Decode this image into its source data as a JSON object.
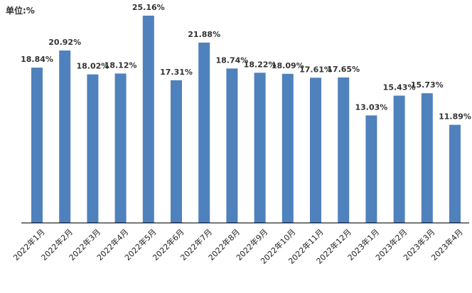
{
  "chart_data": {
    "type": "bar",
    "unit_label": "单位:%",
    "categories": [
      "2022年1月",
      "2022年2月",
      "2022年3月",
      "2022年4月",
      "2022年5月",
      "2022年6月",
      "2022年7月",
      "2022年8月",
      "2022年9月",
      "2022年10月",
      "2022年11月",
      "2022年12月",
      "2023年1月",
      "2023年2月",
      "2023年3月",
      "2023年4月"
    ],
    "values": [
      18.84,
      20.92,
      18.02,
      18.12,
      25.16,
      17.31,
      21.88,
      18.74,
      18.22,
      18.09,
      17.61,
      17.65,
      13.03,
      15.43,
      15.73,
      11.89
    ],
    "data_labels": [
      "18.84%",
      "20.92%",
      "18.02%",
      "18.12%",
      "25.16%",
      "17.31%",
      "21.88%",
      "18.74%",
      "18.22%",
      "18.09%",
      "17.61%",
      "17.65%",
      "13.03%",
      "15.43%",
      "15.73%",
      "11.89%"
    ],
    "ylim": [
      0,
      25.16
    ],
    "grid": false,
    "legend": "none",
    "bar_color": "#4f81bd",
    "axis_color": "#000000"
  }
}
